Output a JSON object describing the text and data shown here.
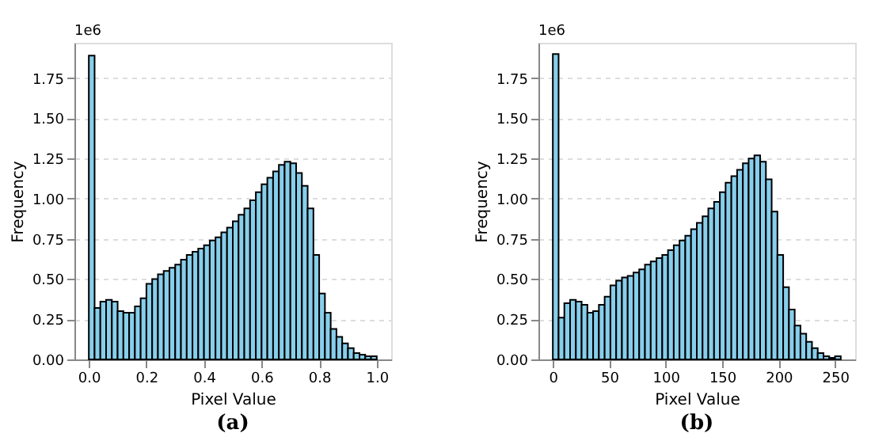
{
  "chart_data": [
    {
      "type": "histogram",
      "xlabel": "Pixel Value",
      "ylabel": "Frequency",
      "annotations": [
        "1e6",
        "(a)"
      ],
      "color": "#87ceeb",
      "grid": "y",
      "bins": [
        0,
        0.02,
        0.04,
        0.06,
        0.08,
        0.1,
        0.12,
        0.14,
        0.16,
        0.18,
        0.2,
        0.22,
        0.24,
        0.26,
        0.28,
        0.3,
        0.32,
        0.34,
        0.36,
        0.38,
        0.4,
        0.42,
        0.44,
        0.46,
        0.48,
        0.5,
        0.52,
        0.54,
        0.56,
        0.58,
        0.6,
        0.62,
        0.64,
        0.66,
        0.68,
        0.7,
        0.72,
        0.74,
        0.76,
        0.78,
        0.8,
        0.82,
        0.84,
        0.86,
        0.88,
        0.9,
        0.92,
        0.94,
        0.96,
        0.98,
        1.0
      ],
      "values": [
        1.89,
        0.32,
        0.36,
        0.37,
        0.36,
        0.3,
        0.29,
        0.29,
        0.33,
        0.38,
        0.47,
        0.5,
        0.53,
        0.55,
        0.57,
        0.59,
        0.62,
        0.65,
        0.67,
        0.69,
        0.71,
        0.74,
        0.76,
        0.79,
        0.82,
        0.86,
        0.9,
        0.94,
        0.99,
        1.04,
        1.09,
        1.13,
        1.17,
        1.21,
        1.23,
        1.22,
        1.16,
        1.08,
        0.94,
        0.65,
        0.41,
        0.29,
        0.19,
        0.14,
        0.1,
        0.07,
        0.04,
        0.03,
        0.02,
        0.02
      ],
      "xlim": [
        -0.05,
        1.05
      ],
      "xticks": [
        {
          "value": 0,
          "label": "0.0"
        },
        0.2,
        0.4,
        0.6,
        0.8,
        {
          "value": 1,
          "label": "1.0"
        }
      ],
      "ylim": [
        0,
        1.97
      ],
      "yticks": [
        {
          "value": 0,
          "label": "0.00"
        },
        0.25,
        {
          "value": 0.5,
          "label": "0.50"
        },
        0.75,
        {
          "value": 1,
          "label": "1.00"
        },
        1.25,
        {
          "value": 1.5,
          "label": "1.50"
        },
        1.75
      ]
    },
    {
      "type": "histogram",
      "xlabel": "Pixel Value",
      "ylabel": "Frequency",
      "annotations": [
        "1e6",
        "(b)"
      ],
      "color": "#87ceeb",
      "grid": "y",
      "bins": [
        0,
        5.1,
        10.2,
        15.3,
        20.4,
        25.5,
        30.6,
        35.7,
        40.8,
        45.9,
        51,
        56.1,
        61.2,
        66.3,
        71.4,
        76.5,
        81.6,
        86.7,
        91.8,
        96.9,
        102,
        107.1,
        112.2,
        117.3,
        122.4,
        127.5,
        132.6,
        137.7,
        142.8,
        147.9,
        153,
        158.1,
        163.2,
        168.3,
        173.4,
        178.5,
        183.6,
        188.7,
        193.8,
        198.9,
        204,
        209.1,
        214.2,
        219.3,
        224.4,
        229.5,
        234.6,
        239.7,
        244.8,
        249.9,
        255
      ],
      "values": [
        1.9,
        0.26,
        0.35,
        0.37,
        0.36,
        0.34,
        0.29,
        0.3,
        0.34,
        0.39,
        0.46,
        0.49,
        0.51,
        0.52,
        0.54,
        0.56,
        0.59,
        0.61,
        0.63,
        0.65,
        0.68,
        0.71,
        0.74,
        0.77,
        0.81,
        0.85,
        0.89,
        0.94,
        0.98,
        1.04,
        1.1,
        1.14,
        1.18,
        1.22,
        1.25,
        1.27,
        1.23,
        1.12,
        0.92,
        0.65,
        0.45,
        0.31,
        0.21,
        0.16,
        0.11,
        0.07,
        0.04,
        0.02,
        0.01,
        0.02
      ],
      "xlim": [
        -12.75,
        267.75
      ],
      "xticks": [
        0,
        50,
        100,
        150,
        200,
        250
      ],
      "ylim": [
        0,
        1.97
      ],
      "yticks": [
        {
          "value": 0,
          "label": "0.00"
        },
        0.25,
        {
          "value": 0.5,
          "label": "0.50"
        },
        0.75,
        {
          "value": 1,
          "label": "1.00"
        },
        1.25,
        {
          "value": 1.5,
          "label": "1.50"
        },
        1.75
      ]
    }
  ]
}
